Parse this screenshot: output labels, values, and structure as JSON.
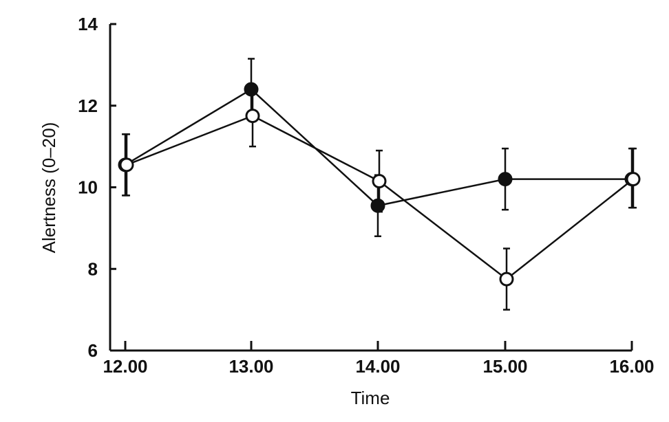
{
  "chart_data": {
    "type": "line",
    "title": "",
    "xlabel": "Time",
    "ylabel": "Alertness (0–20)",
    "x": [
      "12.00",
      "13.00",
      "14.00",
      "15.00",
      "16.00"
    ],
    "x_ticks": [
      "12.00",
      "13.00",
      "14.00",
      "15.00",
      "16.00"
    ],
    "ylim": [
      6,
      14
    ],
    "y_ticks": [
      6,
      8,
      10,
      12,
      14
    ],
    "grid": false,
    "legend": "none",
    "series": [
      {
        "marker": "filled-circle",
        "values": [
          10.55,
          12.4,
          9.55,
          10.2,
          10.2
        ],
        "error_low": [
          9.8,
          11.7,
          8.8,
          9.45,
          9.5
        ],
        "error_high": [
          11.3,
          13.15,
          10.3,
          10.95,
          10.95
        ]
      },
      {
        "marker": "open-circle",
        "values": [
          10.55,
          11.75,
          10.15,
          7.75,
          10.2
        ],
        "error_low": [
          9.8,
          11.0,
          9.4,
          7.0,
          9.5
        ],
        "error_high": [
          11.3,
          12.5,
          10.9,
          8.5,
          10.95
        ]
      }
    ],
    "colors": {
      "line": "#111111",
      "open_fill": "#ffffff"
    }
  }
}
